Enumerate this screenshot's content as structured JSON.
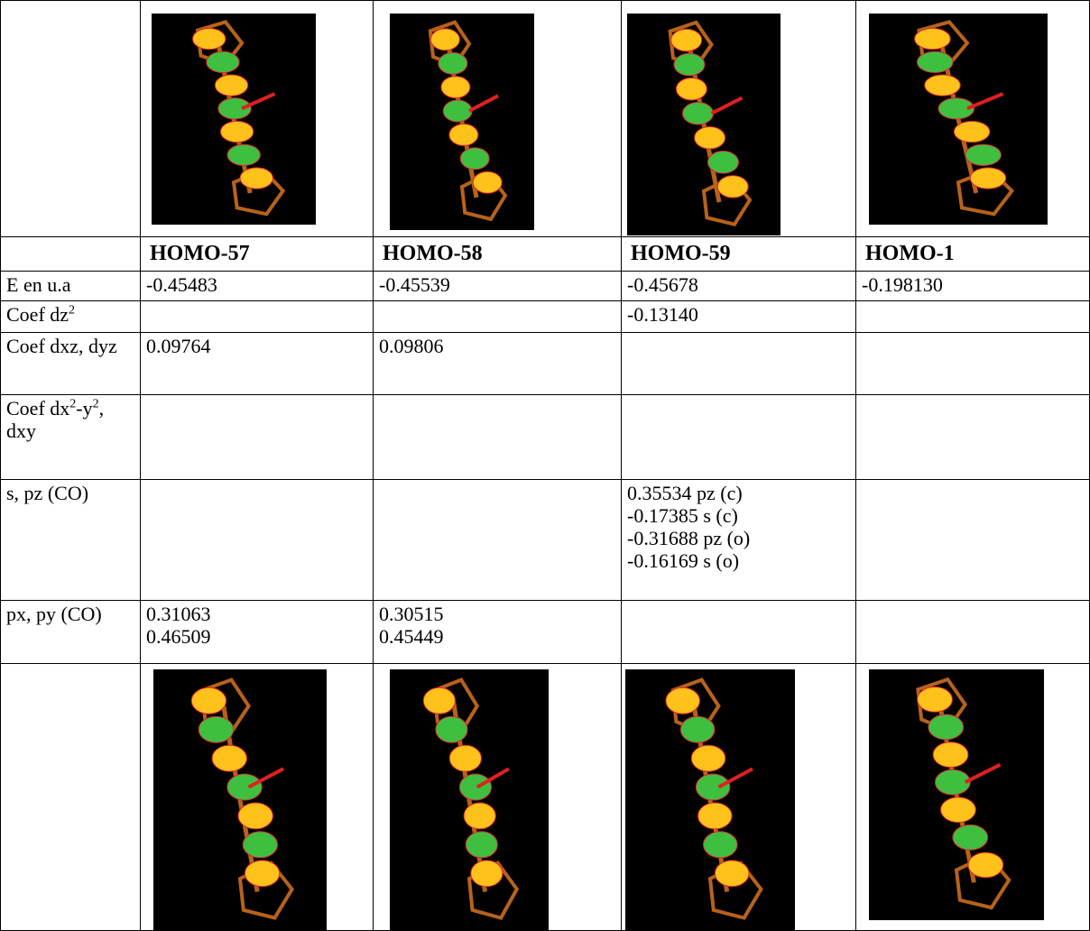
{
  "table": {
    "headers": [
      "HOMO-57",
      "HOMO-58",
      "HOMO-59",
      "HOMO-1"
    ],
    "rows": [
      {
        "label": [
          "E en u.a"
        ],
        "cells": [
          [
            "-0.45483"
          ],
          [
            "-0.45539"
          ],
          [
            "-0.45678"
          ],
          [
            "-0.198130"
          ]
        ]
      },
      {
        "label": [
          "Coef dz",
          "2"
        ],
        "cells": [
          [],
          [],
          [
            "-0.13140"
          ],
          []
        ]
      },
      {
        "label": [
          "Coef dxz, dyz"
        ],
        "cells": [
          [
            "0.09764"
          ],
          [
            "0.09806"
          ],
          [],
          []
        ]
      },
      {
        "label": [
          "Coef dx",
          "2",
          "-y",
          "2",
          ", dxy"
        ],
        "cells": [
          [],
          [],
          [],
          []
        ]
      },
      {
        "label": [
          "s, pz (CO)"
        ],
        "cells": [
          [],
          [],
          [
            "0.35534 pz (c)",
            "-0.17385 s (c)",
            "-0.31688 pz (o)",
            "-0.16169 s (o)"
          ],
          []
        ]
      },
      {
        "label": [
          "px, py (CO)"
        ],
        "cells": [
          [
            "0.31063",
            "0.46509"
          ],
          [
            "0.30515",
            "0.45449"
          ],
          [],
          []
        ]
      }
    ]
  }
}
